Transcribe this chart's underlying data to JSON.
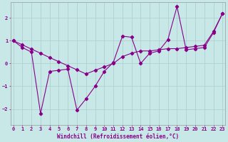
{
  "title": "",
  "xlabel": "Windchill (Refroidissement éolien,°C)",
  "bg_color": "#c8e8e8",
  "line_color": "#880088",
  "ylim": [
    -2.7,
    2.7
  ],
  "xlim": [
    -0.3,
    23.3
  ],
  "yticks": [
    -2,
    -1,
    0,
    1,
    2
  ],
  "xticks": [
    0,
    1,
    2,
    3,
    4,
    5,
    6,
    7,
    8,
    9,
    10,
    11,
    12,
    13,
    14,
    15,
    16,
    17,
    18,
    19,
    20,
    21,
    22,
    23
  ],
  "series1_x": [
    0,
    1,
    2,
    3,
    4,
    5,
    6,
    7,
    8,
    9,
    10,
    11,
    12,
    13,
    14,
    15,
    16,
    17,
    18,
    19,
    20,
    21,
    22,
    23
  ],
  "series1_y": [
    1.0,
    0.7,
    0.5,
    -2.2,
    -0.35,
    -0.3,
    -0.25,
    -2.05,
    -1.55,
    -1.0,
    -0.35,
    0.05,
    1.2,
    1.15,
    0.0,
    0.45,
    0.55,
    1.05,
    2.5,
    0.6,
    0.65,
    0.7,
    1.35,
    2.2
  ],
  "series2_x": [
    0,
    1,
    2,
    3,
    4,
    5,
    6,
    7,
    8,
    9,
    10,
    11,
    12,
    13,
    14,
    15,
    16,
    17,
    18,
    19,
    20,
    21,
    22,
    23
  ],
  "series2_y": [
    1.0,
    0.82,
    0.63,
    0.45,
    0.26,
    0.08,
    -0.1,
    -0.28,
    -0.46,
    -0.3,
    -0.15,
    0.0,
    0.3,
    0.45,
    0.55,
    0.55,
    0.6,
    0.65,
    0.65,
    0.7,
    0.75,
    0.8,
    1.4,
    2.2
  ],
  "grid_color": "#aacccc",
  "tick_fontsize": 5,
  "xlabel_fontsize": 5.5
}
